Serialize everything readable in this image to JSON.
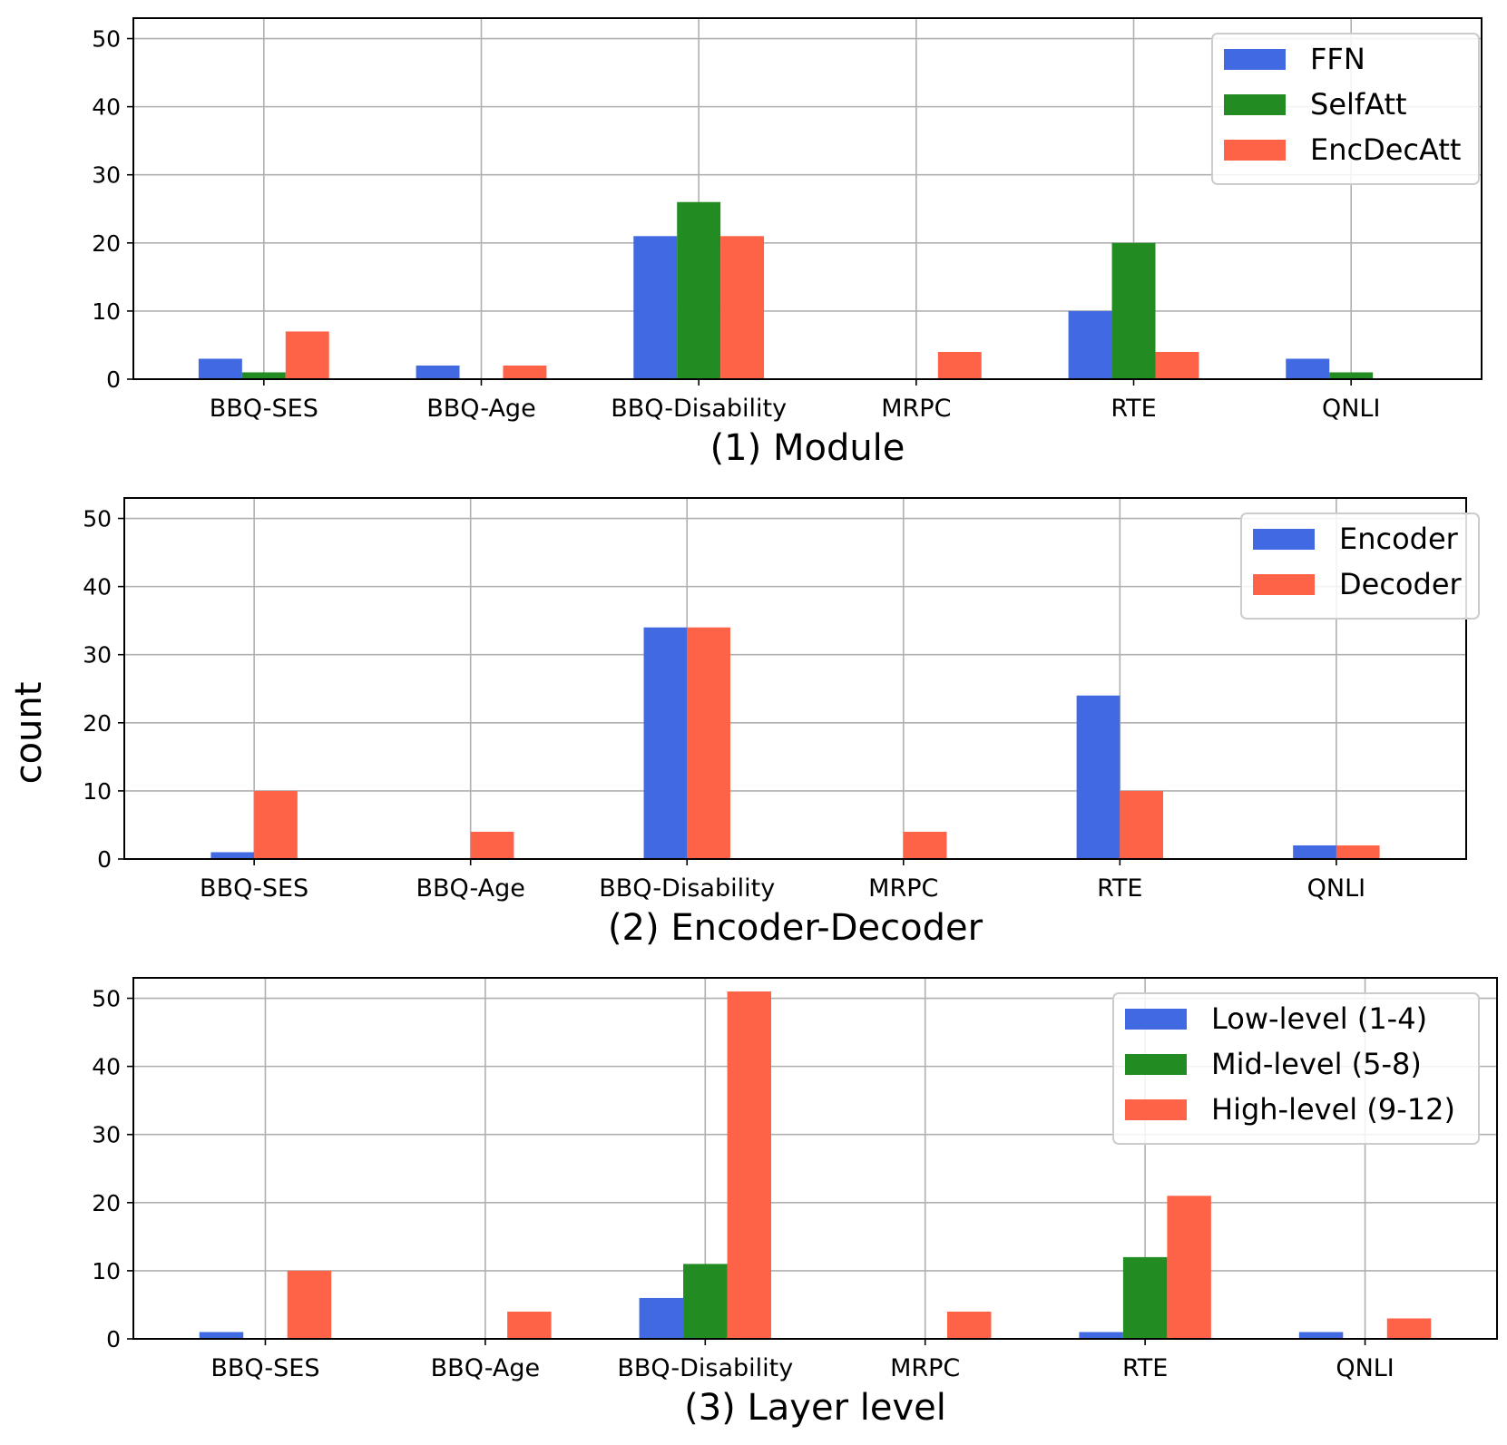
{
  "figure": {
    "ylabel": "count",
    "colors": {
      "blue": "#4169E1",
      "green": "#228B22",
      "red": "#FF6347",
      "grid": "#b0b0b0"
    }
  },
  "chart_data": [
    {
      "type": "bar",
      "title": "(1) Module",
      "categories": [
        "BBQ-SES",
        "BBQ-Age",
        "BBQ-Disability",
        "MRPC",
        "RTE",
        "QNLI"
      ],
      "series": [
        {
          "name": "FFN",
          "color": "#4169E1",
          "values": [
            3,
            2,
            21,
            0,
            10,
            3
          ]
        },
        {
          "name": "SelfAtt",
          "color": "#228B22",
          "values": [
            1,
            0,
            26,
            0,
            20,
            1
          ]
        },
        {
          "name": "EncDecAtt",
          "color": "#FF6347",
          "values": [
            7,
            2,
            21,
            4,
            4,
            0
          ]
        }
      ],
      "yticks": [
        0,
        10,
        20,
        30,
        40,
        50
      ],
      "ylim": [
        0,
        53
      ],
      "grid": true,
      "legend": "top-right"
    },
    {
      "type": "bar",
      "title": "(2) Encoder-Decoder",
      "categories": [
        "BBQ-SES",
        "BBQ-Age",
        "BBQ-Disability",
        "MRPC",
        "RTE",
        "QNLI"
      ],
      "series": [
        {
          "name": "Encoder",
          "color": "#4169E1",
          "values": [
            1,
            0,
            34,
            0,
            24,
            2
          ]
        },
        {
          "name": "Decoder",
          "color": "#FF6347",
          "values": [
            10,
            4,
            34,
            4,
            10,
            2
          ]
        }
      ],
      "yticks": [
        0,
        10,
        20,
        30,
        40,
        50
      ],
      "ylim": [
        0,
        53
      ],
      "grid": true,
      "legend": "top-right"
    },
    {
      "type": "bar",
      "title": "(3) Layer level",
      "categories": [
        "BBQ-SES",
        "BBQ-Age",
        "BBQ-Disability",
        "MRPC",
        "RTE",
        "QNLI"
      ],
      "series": [
        {
          "name": "Low-level (1-4)",
          "color": "#4169E1",
          "values": [
            1,
            0,
            6,
            0,
            1,
            1
          ]
        },
        {
          "name": "Mid-level (5-8)",
          "color": "#228B22",
          "values": [
            0,
            0,
            11,
            0,
            12,
            0
          ]
        },
        {
          "name": "High-level (9-12)",
          "color": "#FF6347",
          "values": [
            10,
            4,
            51,
            4,
            21,
            3
          ]
        }
      ],
      "yticks": [
        0,
        10,
        20,
        30,
        40,
        50
      ],
      "ylim": [
        0,
        53
      ],
      "grid": true,
      "legend": "top-right"
    }
  ]
}
